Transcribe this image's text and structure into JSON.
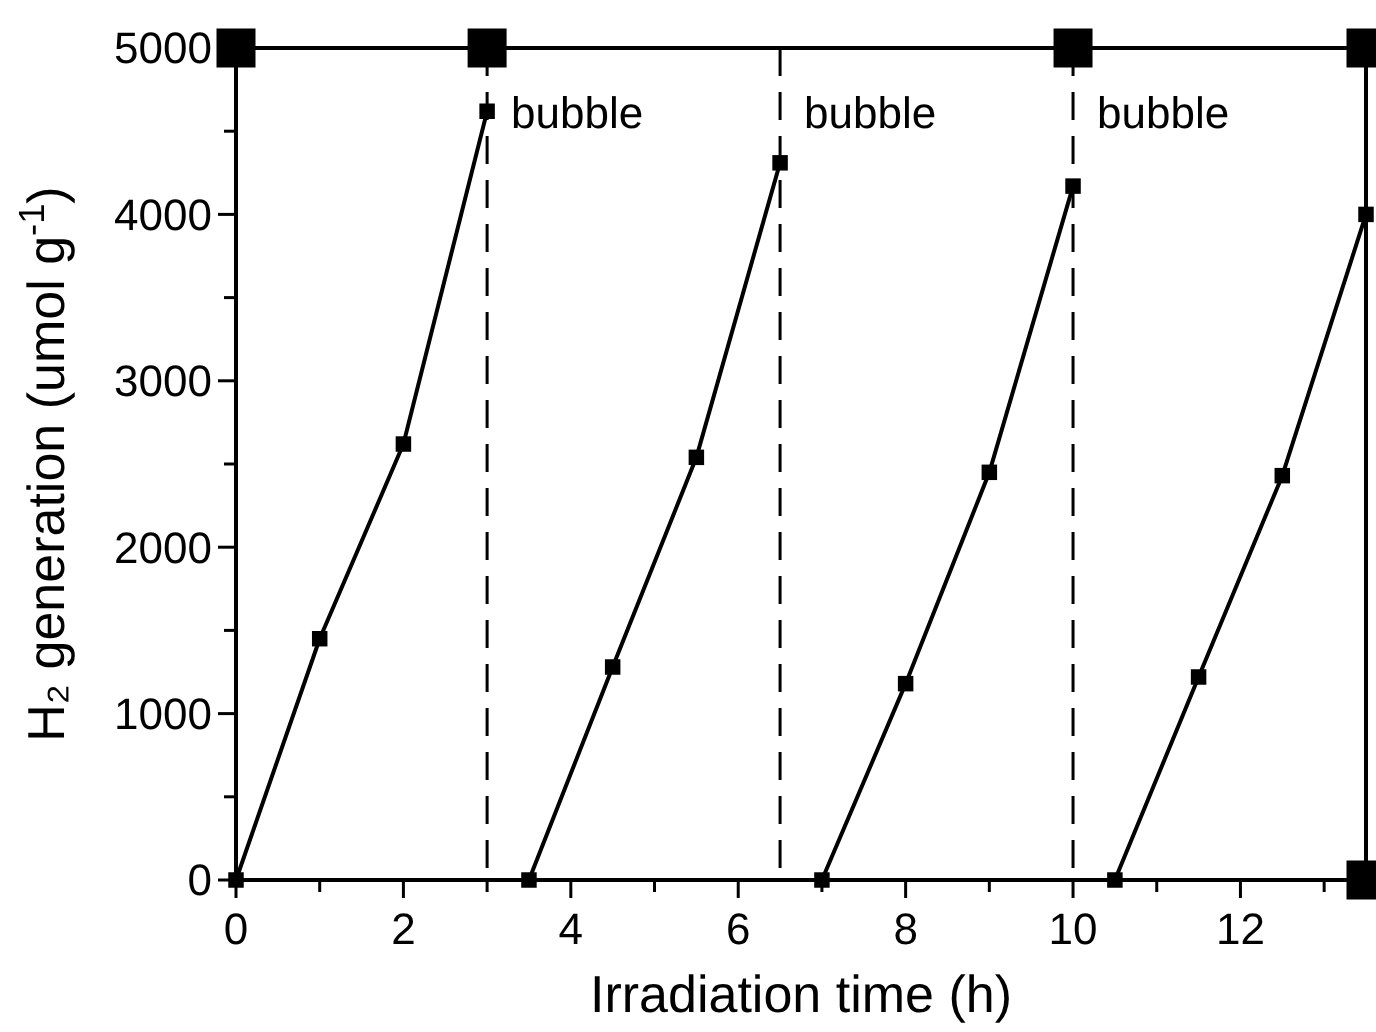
{
  "chart_data": {
    "type": "line",
    "xlabel": "Irradiation time (h)",
    "ylabel": "H₂ generation (umol g$^{-1}$)",
    "xlim": [
      0,
      13.5
    ],
    "ylim": [
      0,
      5000
    ],
    "xticks": [
      0,
      {
        "value": 1,
        "label": null
      },
      2,
      {
        "value": 3,
        "label": null
      },
      4,
      {
        "value": 5,
        "label": null
      },
      6,
      {
        "value": 7,
        "label": null
      },
      8,
      {
        "value": 9,
        "label": null
      },
      10,
      {
        "value": 11,
        "label": null
      },
      12,
      {
        "value": 13,
        "label": null
      }
    ],
    "yticks": [
      0,
      {
        "value": 500,
        "label": null
      },
      1000,
      {
        "value": 1500,
        "label": null
      },
      2000,
      {
        "value": 2500,
        "label": null
      },
      3000,
      {
        "value": 3500,
        "label": null
      },
      4000,
      {
        "value": 4500,
        "label": null
      },
      5000
    ],
    "marker": "square",
    "line_style": "solid",
    "grid": false,
    "series": [
      {
        "color": "#000000",
        "x": [
          0,
          1,
          2,
          3
        ],
        "values": [
          0,
          1450,
          2620,
          4620
        ]
      },
      {
        "color": "#000000",
        "x": [
          3.5,
          4.5,
          5.5,
          6.5
        ],
        "values": [
          0,
          1280,
          2540,
          4310
        ]
      },
      {
        "color": "#000000",
        "x": [
          7,
          8,
          9,
          10
        ],
        "values": [
          0,
          1180,
          2450,
          4170
        ]
      },
      {
        "color": "#000000",
        "x": [
          10.5,
          11.5,
          12.5,
          13.5
        ],
        "values": [
          0,
          1220,
          2430,
          4000
        ]
      },
      {
        "type": "scatter",
        "color": "#000000",
        "x": [
          0,
          3,
          10,
          13.5,
          13.5
        ],
        "values": [
          5000,
          5000,
          5000,
          5000,
          0
        ]
      }
    ],
    "ref_lines": [
      {
        "axis": "x",
        "value": 3,
        "label": "bubble",
        "line_style": "dashed"
      },
      {
        "axis": "x",
        "value": 6.5,
        "label": "bubble",
        "line_style": "dashed"
      },
      {
        "axis": "x",
        "value": 10,
        "label": "bubble",
        "line_style": "dashed"
      }
    ]
  }
}
